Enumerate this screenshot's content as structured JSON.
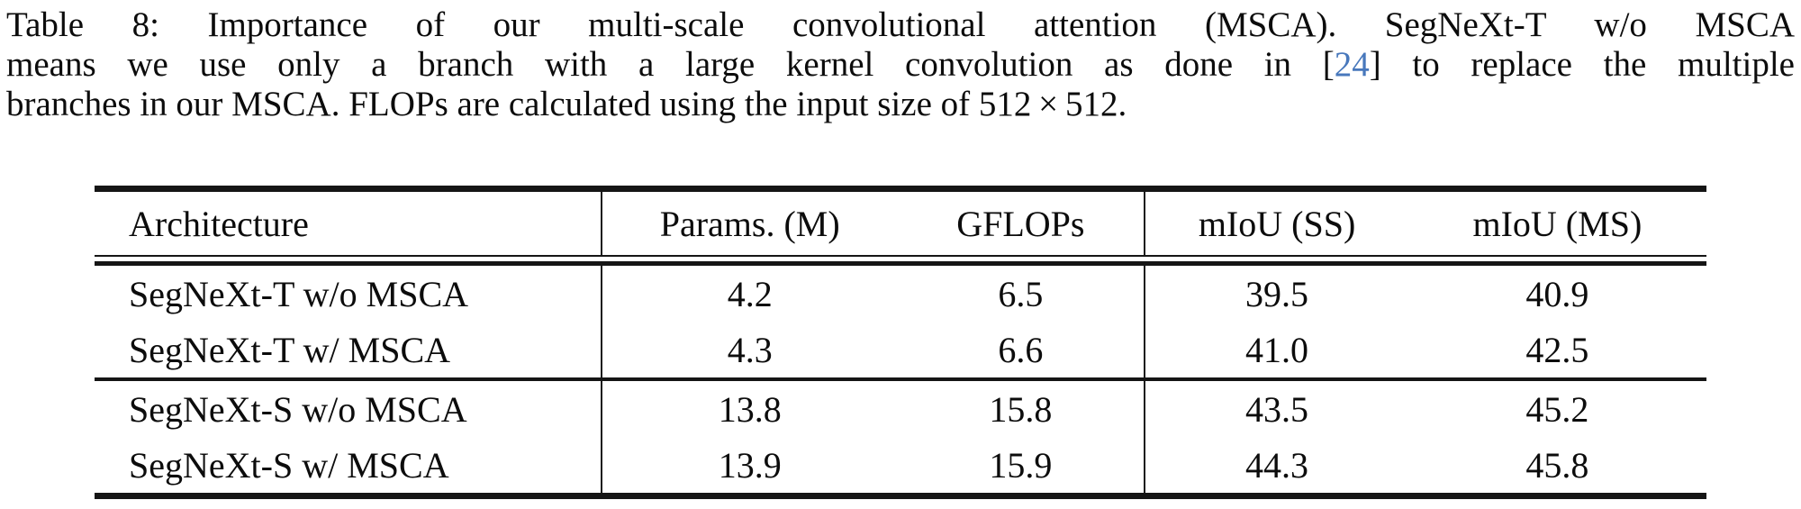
{
  "colors": {
    "page_background": "#ffffff",
    "text": "#0c0c0c",
    "citation_blue": "#4878bc",
    "rule_black": "#151515"
  },
  "caption": {
    "line1": "Table 8: Importance of our multi-scale convolutional attention (MSCA). SegNeXt-T w/o MSCA",
    "line2_before_cite": "means we use only a branch with a large kernel convolution as done in [",
    "cite": "24",
    "line2_after_cite": "] to replace the multiple",
    "line3": "branches in our MSCA. FLOPs are calculated using the input size of 512 × 512."
  },
  "table": {
    "headers": [
      "Architecture",
      "Params. (M)",
      "GFLOPs",
      "mIoU (SS)",
      "mIoU (MS)"
    ],
    "groups": [
      {
        "rows": [
          {
            "architecture": "SegNeXt-T w/o MSCA",
            "params": "4.2",
            "gflops": "6.5",
            "miou_ss": "39.5",
            "miou_ms": "40.9"
          },
          {
            "architecture": "SegNeXt-T w/ MSCA",
            "params": "4.3",
            "gflops": "6.6",
            "miou_ss": "41.0",
            "miou_ms": "42.5"
          }
        ]
      },
      {
        "rows": [
          {
            "architecture": "SegNeXt-S w/o MSCA",
            "params": "13.8",
            "gflops": "15.8",
            "miou_ss": "43.5",
            "miou_ms": "45.2"
          },
          {
            "architecture": "SegNeXt-S w/ MSCA",
            "params": "13.9",
            "gflops": "15.9",
            "miou_ss": "44.3",
            "miou_ms": "45.8"
          }
        ]
      }
    ]
  }
}
